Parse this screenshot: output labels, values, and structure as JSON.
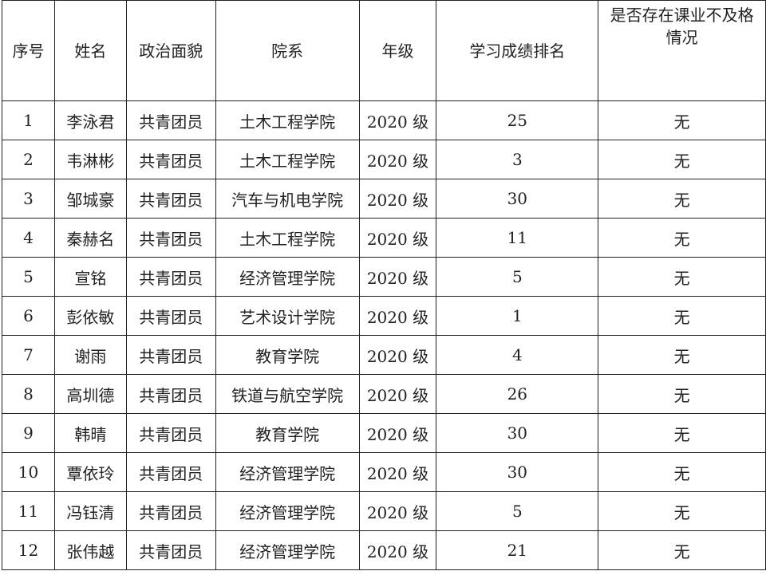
{
  "table": {
    "headers": [
      "序号",
      "姓名",
      "政治面貌",
      "院系",
      "年级",
      "学习成绩排名",
      "是否存在课业不及格情况"
    ],
    "rows": [
      [
        "1",
        "李泳君",
        "共青团员",
        "土木工程学院",
        "2020 级",
        "25",
        "无"
      ],
      [
        "2",
        "韦淋彬",
        "共青团员",
        "土木工程学院",
        "2020 级",
        "3",
        "无"
      ],
      [
        "3",
        "邹城豪",
        "共青团员",
        "汽车与机电学院",
        "2020 级",
        "30",
        "无"
      ],
      [
        "4",
        "秦赫名",
        "共青团员",
        "土木工程学院",
        "2020 级",
        "11",
        "无"
      ],
      [
        "5",
        "宣铭",
        "共青团员",
        "经济管理学院",
        "2020 级",
        "5",
        "无"
      ],
      [
        "6",
        "彭依敏",
        "共青团员",
        "艺术设计学院",
        "2020 级",
        "1",
        "无"
      ],
      [
        "7",
        "谢雨",
        "共青团员",
        "教育学院",
        "2020 级",
        "4",
        "无"
      ],
      [
        "8",
        "高圳德",
        "共青团员",
        "铁道与航空学院",
        "2020 级",
        "26",
        "无"
      ],
      [
        "9",
        "韩晴",
        "共青团员",
        "教育学院",
        "2020 级",
        "30",
        "无"
      ],
      [
        "10",
        "覃依玲",
        "共青团员",
        "经济管理学院",
        "2020 级",
        "30",
        "无"
      ],
      [
        "11",
        "冯钰清",
        "共青团员",
        "经济管理学院",
        "2020 级",
        "5",
        "无"
      ],
      [
        "12",
        "张伟越",
        "共青团员",
        "经济管理学院",
        "2020 级",
        "21",
        "无"
      ]
    ]
  }
}
